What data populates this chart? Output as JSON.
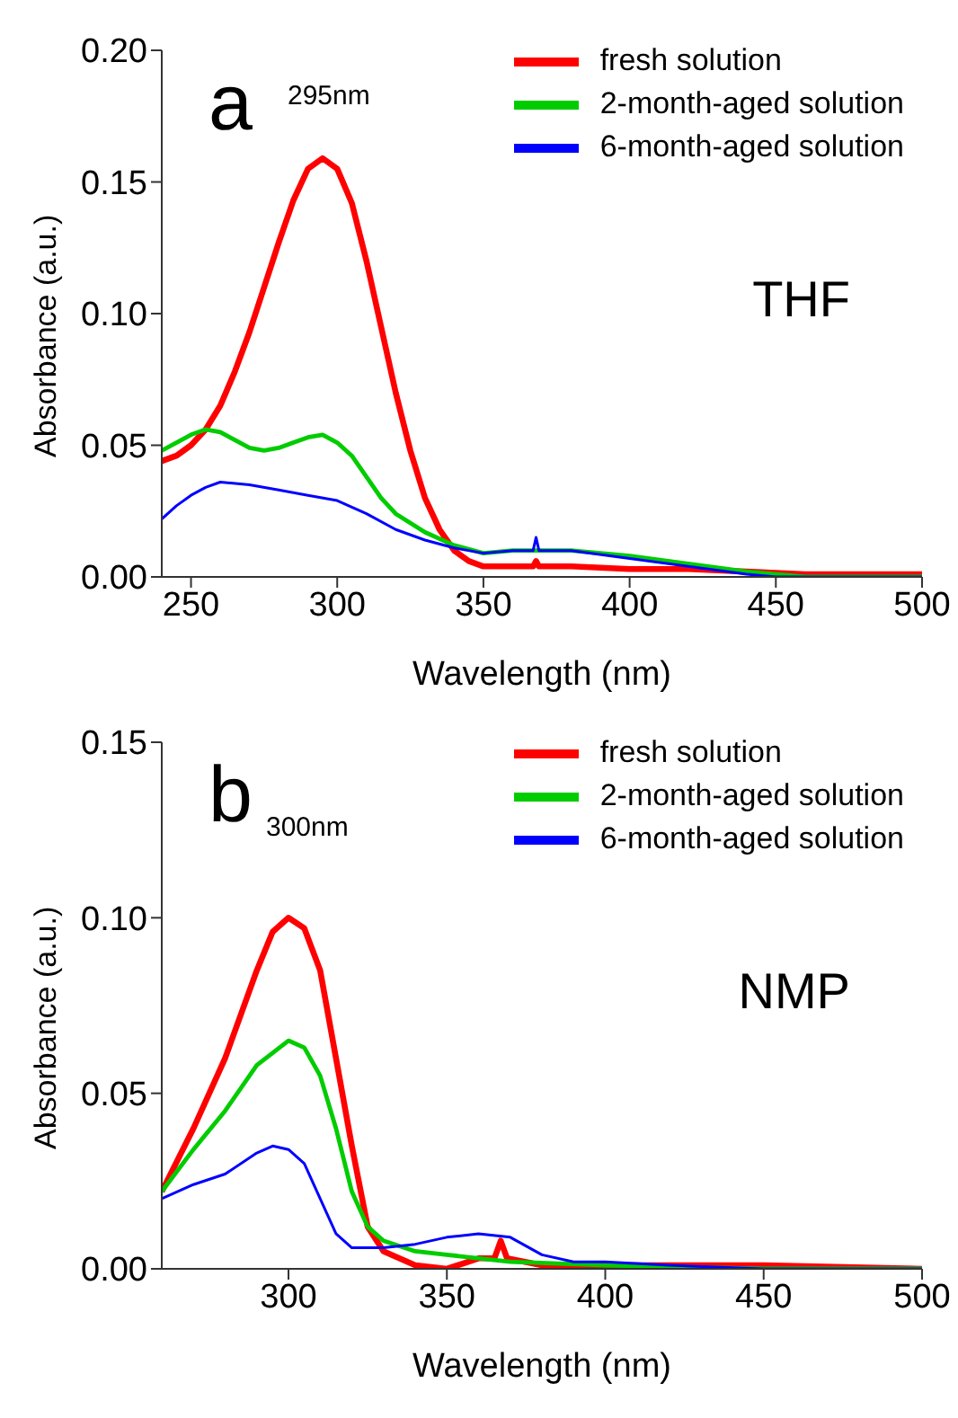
{
  "chart_data": [
    {
      "type": "line",
      "xlabel": "Wavelength (nm)",
      "ylabel": "Absorbance (a.u.)",
      "annotations": [
        "a",
        "295nm",
        "THF"
      ],
      "xlim": [
        240,
        500
      ],
      "xticks": [
        250,
        300,
        350,
        400,
        450,
        500
      ],
      "ylim": [
        0,
        0.2
      ],
      "yticks": [
        {
          "value": 0,
          "label": "0.00"
        },
        {
          "value": 0.05,
          "label": "0.05"
        },
        {
          "value": 0.1,
          "label": "0.10"
        },
        {
          "value": 0.15,
          "label": "0.15"
        },
        {
          "value": 0.2,
          "label": "0.20"
        }
      ],
      "legend": "top right",
      "grid": false,
      "marker": "none",
      "line_style": "solid",
      "series": [
        {
          "name": "fresh solution",
          "color": "#ff0000",
          "x": [
            240,
            245,
            250,
            255,
            260,
            265,
            270,
            275,
            280,
            285,
            290,
            295,
            300,
            305,
            310,
            315,
            320,
            325,
            330,
            335,
            340,
            345,
            350,
            360,
            367,
            368,
            369,
            380,
            400,
            420,
            440,
            460,
            480,
            500
          ],
          "values": [
            0.044,
            0.046,
            0.05,
            0.056,
            0.065,
            0.078,
            0.093,
            0.11,
            0.127,
            0.143,
            0.155,
            0.159,
            0.155,
            0.142,
            0.12,
            0.095,
            0.07,
            0.048,
            0.03,
            0.018,
            0.01,
            0.006,
            0.004,
            0.004,
            0.004,
            0.006,
            0.004,
            0.004,
            0.003,
            0.003,
            0.002,
            0.001,
            0.001,
            0.001
          ]
        },
        {
          "name": "2-month-aged solution",
          "color": "#00cc00",
          "x": [
            240,
            250,
            255,
            260,
            265,
            270,
            275,
            280,
            285,
            290,
            295,
            300,
            305,
            310,
            315,
            320,
            330,
            340,
            350,
            360,
            370,
            380,
            400,
            420,
            440,
            460,
            500
          ],
          "values": [
            0.048,
            0.054,
            0.056,
            0.055,
            0.052,
            0.049,
            0.048,
            0.049,
            0.051,
            0.053,
            0.054,
            0.051,
            0.046,
            0.038,
            0.03,
            0.024,
            0.017,
            0.012,
            0.009,
            0.01,
            0.01,
            0.01,
            0.008,
            0.005,
            0.002,
            0,
            0
          ]
        },
        {
          "name": "6-month-aged solution",
          "color": "#0000ff",
          "x": [
            240,
            245,
            250,
            255,
            260,
            270,
            280,
            290,
            300,
            310,
            320,
            330,
            340,
            350,
            360,
            367,
            368,
            369,
            380,
            400,
            420,
            440,
            450,
            500
          ],
          "values": [
            0.022,
            0.027,
            0.031,
            0.034,
            0.036,
            0.035,
            0.033,
            0.031,
            0.029,
            0.024,
            0.018,
            0.014,
            0.011,
            0.009,
            0.01,
            0.01,
            0.015,
            0.01,
            0.01,
            0.007,
            0.004,
            0.001,
            0,
            0
          ]
        }
      ]
    },
    {
      "type": "line",
      "xlabel": "Wavelength (nm)",
      "ylabel": "Absorbance (a.u.)",
      "annotations": [
        "b",
        "300nm",
        "NMP"
      ],
      "xlim": [
        260,
        500
      ],
      "xticks": [
        300,
        350,
        400,
        450,
        500
      ],
      "ylim": [
        0,
        0.15
      ],
      "yticks": [
        {
          "value": 0,
          "label": "0.00"
        },
        {
          "value": 0.05,
          "label": "0.05"
        },
        {
          "value": 0.1,
          "label": "0.10"
        },
        {
          "value": 0.15,
          "label": "0.15"
        }
      ],
      "legend": "top right",
      "grid": false,
      "marker": "none",
      "line_style": "solid",
      "series": [
        {
          "name": "fresh solution",
          "color": "#ff0000",
          "x": [
            260,
            270,
            280,
            290,
            295,
            300,
            305,
            310,
            315,
            320,
            325,
            330,
            340,
            350,
            360,
            365,
            367,
            369,
            380,
            400,
            450,
            500
          ],
          "values": [
            0.022,
            0.04,
            0.06,
            0.085,
            0.096,
            0.1,
            0.097,
            0.085,
            0.06,
            0.035,
            0.012,
            0.005,
            0.001,
            0,
            0.003,
            0.003,
            0.008,
            0.003,
            0.001,
            0.001,
            0.001,
            0
          ]
        },
        {
          "name": "2-month-aged solution",
          "color": "#00cc00",
          "x": [
            260,
            270,
            280,
            290,
            300,
            305,
            310,
            315,
            320,
            325,
            330,
            340,
            350,
            370,
            400,
            450,
            500
          ],
          "values": [
            0.022,
            0.034,
            0.045,
            0.058,
            0.065,
            0.063,
            0.055,
            0.04,
            0.022,
            0.012,
            0.008,
            0.005,
            0.004,
            0.002,
            0.001,
            0,
            0
          ]
        },
        {
          "name": "6-month-aged solution",
          "color": "#0000ff",
          "x": [
            260,
            270,
            280,
            290,
            295,
            300,
            305,
            310,
            315,
            320,
            330,
            340,
            350,
            360,
            370,
            380,
            390,
            400,
            420,
            450,
            500
          ],
          "values": [
            0.02,
            0.024,
            0.027,
            0.033,
            0.035,
            0.034,
            0.03,
            0.02,
            0.01,
            0.006,
            0.006,
            0.007,
            0.009,
            0.01,
            0.009,
            0.004,
            0.002,
            0.002,
            0.001,
            0,
            0
          ]
        }
      ]
    }
  ]
}
